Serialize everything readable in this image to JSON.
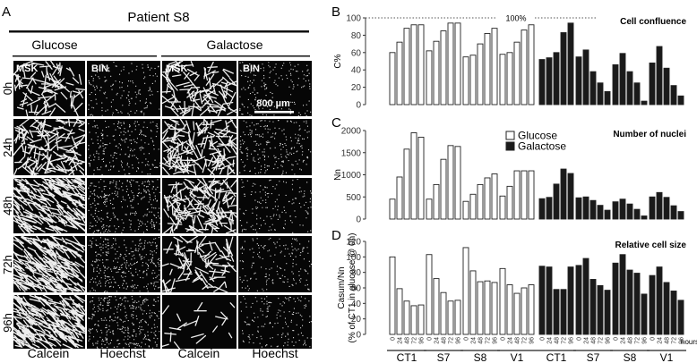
{
  "left_panel": {
    "letter": "A",
    "title": "Patient S8",
    "group_headers": [
      "Glucose",
      "Galactose"
    ],
    "row_labels": [
      "0h",
      "24h",
      "48h",
      "72h",
      "96h"
    ],
    "mask_labels": [
      "MSK",
      "BIN",
      "MSK",
      "BIN"
    ],
    "scale_bar": "800 µm",
    "bottom_labels": [
      "Calcein",
      "Hoechst",
      "Calcein",
      "Hoechst"
    ]
  },
  "hours_label": "hours",
  "time_ticks": [
    "0",
    "24",
    "48",
    "72",
    "96"
  ],
  "groups": [
    "CT1",
    "S7",
    "S8",
    "V1",
    "CT1",
    "S7",
    "S8",
    "V1"
  ],
  "legend": [
    {
      "name": "Glucose",
      "fill": "#ffffff"
    },
    {
      "name": "Galactose",
      "fill": "#1a1a1a"
    }
  ],
  "colors": {
    "glucose": "#ffffff",
    "galactose": "#1a1a1a",
    "axis": "#333333"
  },
  "chart_data": [
    {
      "type": "bar",
      "letter": "B",
      "title": "Cell confluence",
      "ylabel": "C%",
      "ylim": [
        0,
        100
      ],
      "yticks": [
        0,
        20,
        40,
        60,
        80,
        100
      ],
      "reference_line": {
        "value": 100,
        "label": "100%"
      },
      "categories": [
        "CT1",
        "S7",
        "S8",
        "V1"
      ],
      "series": [
        {
          "name": "Glucose",
          "values": [
            [
              60,
              72,
              88,
              92,
              92
            ],
            [
              62,
              73,
              85,
              94,
              94
            ],
            [
              55,
              57,
              70,
              82,
              88
            ],
            [
              58,
              60,
              72,
              86,
              92
            ]
          ]
        },
        {
          "name": "Galactose",
          "values": [
            [
              52,
              54,
              60,
              83,
              94
            ],
            [
              55,
              63,
              38,
              25,
              15
            ],
            [
              46,
              59,
              38,
              25,
              4
            ],
            [
              48,
              67,
              42,
              22,
              10
            ]
          ]
        }
      ]
    },
    {
      "type": "bar",
      "letter": "C",
      "title": "Number of nuclei",
      "ylabel": "Nn",
      "ylim": [
        0,
        2000
      ],
      "yticks": [
        0,
        500,
        1000,
        1500,
        2000
      ],
      "categories": [
        "CT1",
        "S7",
        "S8",
        "V1"
      ],
      "series": [
        {
          "name": "Glucose",
          "values": [
            [
              450,
              950,
              1580,
              1950,
              1850
            ],
            [
              450,
              780,
              1350,
              1660,
              1640
            ],
            [
              400,
              560,
              780,
              930,
              1020
            ],
            [
              520,
              740,
              1090,
              1090,
              1090
            ]
          ]
        },
        {
          "name": "Galactose",
          "values": [
            [
              460,
              490,
              790,
              1130,
              1030
            ],
            [
              480,
              500,
              420,
              310,
              200
            ],
            [
              390,
              450,
              340,
              220,
              70
            ],
            [
              500,
              600,
              490,
              300,
              170
            ]
          ]
        }
      ]
    },
    {
      "type": "bar",
      "letter": "D",
      "title": "Relative cell size",
      "ylabel": "Casum/Nn",
      "ylabel2": "(% of CT1 in glucose @ 0h)",
      "ylim": [
        0,
        120
      ],
      "yticks": [
        0,
        20,
        40,
        60,
        80,
        100,
        120
      ],
      "categories": [
        "CT1",
        "S7",
        "S8",
        "V1"
      ],
      "series": [
        {
          "name": "Glucose",
          "values": [
            [
              100,
              59,
              43,
              37,
              38
            ],
            [
              103,
              72,
              54,
              43,
              44
            ],
            [
              112,
              82,
              68,
              69,
              67
            ],
            [
              85,
              64,
              53,
              60,
              64
            ]
          ]
        },
        {
          "name": "Galactose",
          "values": [
            [
              88,
              87,
              58,
              58,
              87
            ],
            [
              89,
              98,
              71,
              63,
              57
            ],
            [
              92,
              103,
              83,
              79,
              52
            ],
            [
              76,
              87,
              67,
              56,
              44
            ]
          ]
        }
      ]
    }
  ]
}
